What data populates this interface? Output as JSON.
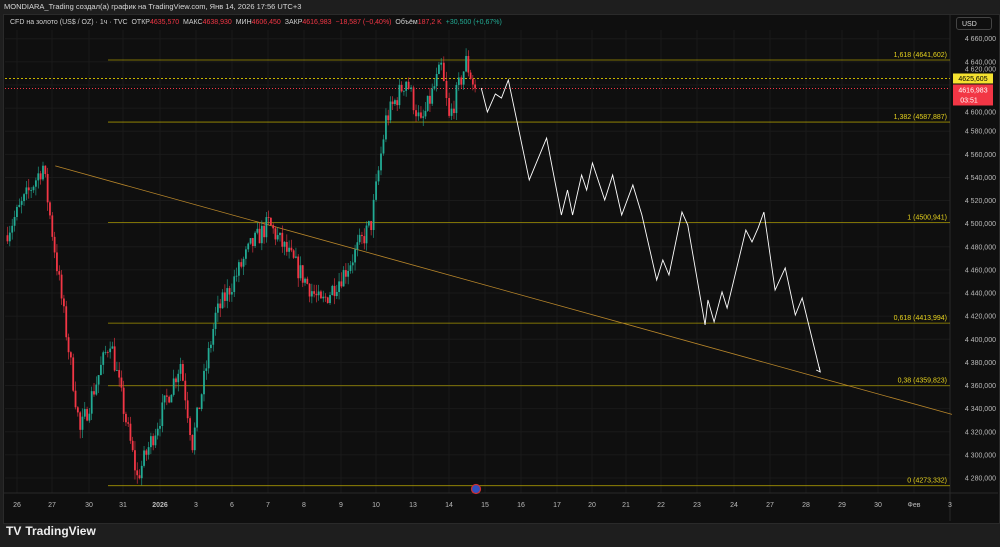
{
  "title": "MONDIARA_Trading создал(а) график на TradingView.com, Янв 14, 2026 17:56 UTC+3",
  "legend": {
    "symbol": "CFD на золото (US$ / OZ) · 1ч · TVC",
    "open_label": "ОТКР",
    "open": "4635,570",
    "high_label": "МАКС",
    "high": "4638,930",
    "low_label": "МИН",
    "low": "4606,450",
    "close_label": "ЗАКР",
    "close": "4616,983",
    "change": "−18,587 (−0,40%)",
    "volume_label": "Объём",
    "volume": "187,2 K",
    "vol_change": "+30,500 (+0,67%)"
  },
  "currency": "USD",
  "price_tags": {
    "level": "4625,605",
    "last": "4616,983",
    "countdown": "03:51"
  },
  "brand": "TradingView",
  "colors": {
    "up": "#22ab94",
    "down": "#f23645",
    "fib": "#c8b400",
    "trend": "#b8862a",
    "projection": "#ffffff"
  },
  "chart_data": {
    "type": "candlestick",
    "y_ticks": [
      "4 660,000",
      "4 640,000",
      "4 620,000",
      "4 600,000",
      "4 580,000",
      "4 560,000",
      "4 540,000",
      "4 520,000",
      "4 500,000",
      "4 480,000",
      "4 460,000",
      "4 440,000",
      "4 420,000",
      "4 400,000",
      "4 380,000",
      "4 360,000",
      "4 340,000",
      "4 320,000",
      "4 300,000",
      "4 280,000"
    ],
    "y_values": [
      4660,
      4640,
      4620,
      4600,
      4580,
      4560,
      4540,
      4520,
      4500,
      4480,
      4460,
      4440,
      4420,
      4400,
      4380,
      4360,
      4340,
      4320,
      4300,
      4280
    ],
    "x_ticks": [
      "26",
      "27",
      "30",
      "31",
      "2026",
      "3",
      "6",
      "7",
      "8",
      "9",
      "10",
      "13",
      "14",
      "15",
      "16",
      "17",
      "20",
      "21",
      "22",
      "23",
      "24",
      "27",
      "28",
      "29",
      "30",
      "Фев",
      "3"
    ],
    "fib_levels": [
      {
        "label": "1,618 (4641,602)",
        "value": 4641.602
      },
      {
        "label": "1,382 (4587,887)",
        "value": 4587.887
      },
      {
        "label": "1 (4500,941)",
        "value": 4500.941
      },
      {
        "label": "0,618 (4413,994)",
        "value": 4413.994
      },
      {
        "label": "0,38 (4359,823)",
        "value": 4359.823
      },
      {
        "label": "0 (4273,332)",
        "value": 4273.332
      }
    ],
    "price_path": [
      [
        -0.33,
        4490
      ],
      [
        0.72,
        4550
      ],
      [
        1.75,
        4320
      ],
      [
        2.58,
        4400
      ],
      [
        3.33,
        4280
      ],
      [
        4.53,
        4380
      ],
      [
        4.86,
        4310
      ],
      [
        5.5,
        4420
      ],
      [
        6.47,
        4480
      ],
      [
        6.97,
        4500
      ],
      [
        8.42,
        4430
      ],
      [
        9.11,
        4460
      ],
      [
        9.81,
        4500
      ],
      [
        10.22,
        4590
      ],
      [
        10.78,
        4625
      ],
      [
        11.19,
        4585
      ],
      [
        11.75,
        4635
      ],
      [
        11.97,
        4590
      ],
      [
        12.44,
        4640
      ],
      [
        12.69,
        4617
      ]
    ],
    "projection": [
      [
        12.86,
        4617.4
      ],
      [
        13.03,
        4596.6
      ],
      [
        13.25,
        4612.2
      ],
      [
        13.42,
        4608.7
      ],
      [
        13.61,
        4624.3
      ],
      [
        14.19,
        4537.8
      ],
      [
        14.67,
        4574.1
      ],
      [
        15.08,
        4507.5
      ],
      [
        15.25,
        4529.1
      ],
      [
        15.39,
        4507.5
      ],
      [
        15.64,
        4542.1
      ],
      [
        15.78,
        4529.1
      ],
      [
        15.94,
        4552.5
      ],
      [
        16.28,
        4520.5
      ],
      [
        16.5,
        4542.1
      ],
      [
        16.75,
        4507.5
      ],
      [
        17.06,
        4533.5
      ],
      [
        17.31,
        4507.5
      ],
      [
        17.72,
        4451.3
      ],
      [
        17.89,
        4468.6
      ],
      [
        18.06,
        4455.6
      ],
      [
        18.42,
        4510.1
      ],
      [
        18.58,
        4498.9
      ],
      [
        19.06,
        4412.4
      ],
      [
        19.14,
        4434
      ],
      [
        19.31,
        4415
      ],
      [
        19.53,
        4441
      ],
      [
        19.67,
        4427
      ],
      [
        20.19,
        4494.5
      ],
      [
        20.36,
        4484.2
      ],
      [
        20.53,
        4496.3
      ],
      [
        20.69,
        4510.1
      ],
      [
        21,
        4442.6
      ],
      [
        21.28,
        4461.7
      ],
      [
        21.56,
        4421
      ],
      [
        21.75,
        4435.7
      ],
      [
        22.25,
        4371.7
      ]
    ],
    "trendline": [
      [
        1.06,
        4550
      ],
      [
        25.9,
        4335
      ]
    ],
    "horizontal_lines": [
      4625.605,
      4616.983
    ]
  }
}
